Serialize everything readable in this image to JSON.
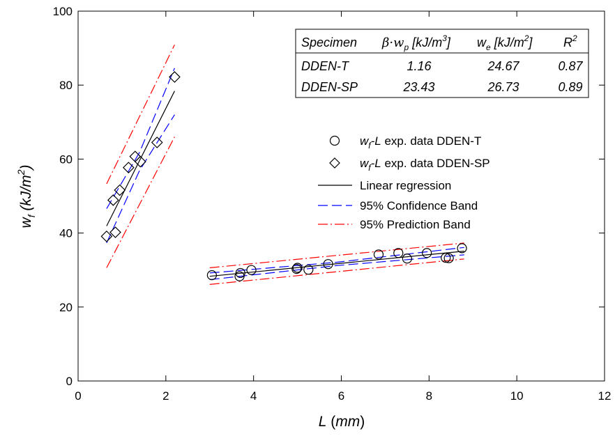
{
  "chart_data": {
    "type": "scatter",
    "xlabel": {
      "var": "L",
      "unit": "(mm)"
    },
    "ylabel": {
      "var": "w",
      "sub": "f",
      "unit": "(kJ/m",
      "sup": "2",
      "close": ")"
    },
    "xlim": [
      0,
      12
    ],
    "ylim": [
      0,
      100
    ],
    "xticks": [
      0,
      2,
      4,
      6,
      8,
      10,
      12
    ],
    "yticks": [
      0,
      20,
      40,
      60,
      80,
      100
    ],
    "grid": false,
    "legend_position": "right-middle",
    "colors": {
      "regression": "#000000",
      "confidence": "#0000ff",
      "prediction": "#ff0000",
      "marker": "#000000"
    },
    "table": {
      "headers": {
        "specimen": "Specimen",
        "bwp": {
          "text": "β·w",
          "sub": "p",
          "unit": " [kJ/m",
          "sup": "3",
          "close": "]"
        },
        "we": {
          "text": "w",
          "sub": "e",
          "unit": " [kJ/m",
          "sup": "2",
          "close": "]"
        },
        "r2": {
          "text": "R",
          "sup": "2"
        }
      },
      "rows": [
        {
          "specimen": "DDEN-T",
          "bwp": "1.16",
          "we": "24.67",
          "r2": "0.87"
        },
        {
          "specimen": "DDEN-SP",
          "bwp": "23.43",
          "we": "26.73",
          "r2": "0.89"
        }
      ]
    },
    "legend": [
      {
        "key": "circle",
        "label": {
          "italic_part": "w",
          "sub": "f",
          "italic_part2": "-L",
          "rest": " exp. data DDEN-T"
        }
      },
      {
        "key": "diamond",
        "label": {
          "italic_part": "w",
          "sub": "f",
          "italic_part2": "-L",
          "rest": " exp. data DDEN-SP"
        }
      },
      {
        "key": "regression",
        "label": {
          "rest": "Linear regression"
        }
      },
      {
        "key": "confidence",
        "label": {
          "rest": "95% Confidence Band"
        }
      },
      {
        "key": "prediction",
        "label": {
          "rest": "95% Prediction Band"
        }
      }
    ],
    "series": [
      {
        "marker": "circle",
        "points": [
          [
            3.05,
            28.6
          ],
          [
            3.68,
            28.3
          ],
          [
            3.7,
            29.2
          ],
          [
            3.95,
            30.0
          ],
          [
            4.98,
            30.3
          ],
          [
            5.0,
            30.6
          ],
          [
            5.25,
            30.1
          ],
          [
            5.7,
            31.6
          ],
          [
            6.85,
            34.2
          ],
          [
            7.3,
            34.6
          ],
          [
            7.5,
            33.1
          ],
          [
            7.95,
            34.6
          ],
          [
            8.38,
            33.3
          ],
          [
            8.45,
            33.2
          ],
          [
            8.75,
            35.9
          ]
        ],
        "regression": [
          [
            3.0,
            28.3
          ],
          [
            8.8,
            35.1
          ]
        ],
        "confidence_upper": [
          [
            3.0,
            29.2
          ],
          [
            5.9,
            32.1
          ],
          [
            8.8,
            36.1
          ]
        ],
        "confidence_lower": [
          [
            3.0,
            27.4
          ],
          [
            5.9,
            31.2
          ],
          [
            8.8,
            34.1
          ]
        ],
        "prediction_upper": [
          [
            3.0,
            30.6
          ],
          [
            8.8,
            37.3
          ]
        ],
        "prediction_lower": [
          [
            3.0,
            26.1
          ],
          [
            8.8,
            33.0
          ]
        ]
      },
      {
        "marker": "diamond",
        "points": [
          [
            0.65,
            39.1
          ],
          [
            0.8,
            48.9
          ],
          [
            0.85,
            40.2
          ],
          [
            0.95,
            51.6
          ],
          [
            1.15,
            57.7
          ],
          [
            1.3,
            60.7
          ],
          [
            1.42,
            59.3
          ],
          [
            1.8,
            64.5
          ],
          [
            2.2,
            82.2
          ]
        ],
        "regression": [
          [
            0.65,
            41.9
          ],
          [
            2.2,
            78.4
          ]
        ],
        "confidence_upper": [
          [
            0.65,
            46.6
          ],
          [
            1.4,
            61.8
          ],
          [
            2.2,
            84.6
          ]
        ],
        "confidence_lower": [
          [
            0.65,
            37.3
          ],
          [
            1.4,
            56.9
          ],
          [
            2.2,
            72.0
          ]
        ],
        "prediction_upper": [
          [
            0.65,
            53.3
          ],
          [
            2.2,
            90.9
          ]
        ],
        "prediction_lower": [
          [
            0.65,
            30.6
          ],
          [
            2.2,
            66.0
          ]
        ]
      }
    ]
  }
}
